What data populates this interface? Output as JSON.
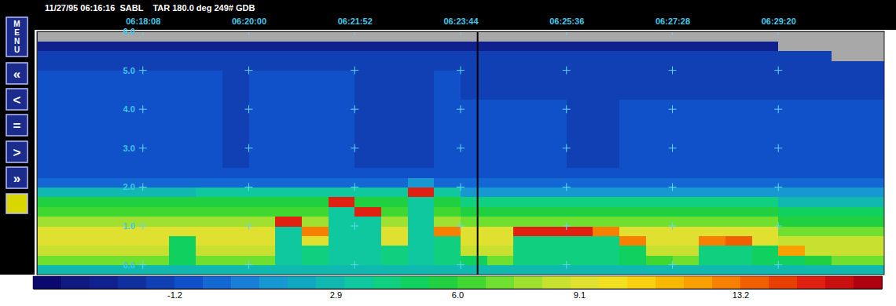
{
  "chart_data": {
    "type": "heatmap",
    "title": "11/27/95 06:16:16  SABL    TAR 180.0 deg 249# GDB",
    "xlim": [
      22576,
      23472
    ],
    "xticks": [
      {
        "value": 22688,
        "label": "06:18:08"
      },
      {
        "value": 22800,
        "label": "06:20:00"
      },
      {
        "value": 22912,
        "label": "06:21:52"
      },
      {
        "value": 23024,
        "label": "06:23:44"
      },
      {
        "value": 23136,
        "label": "06:25:36"
      },
      {
        "value": 23248,
        "label": "06:27:28"
      },
      {
        "value": 23360,
        "label": "06:29:20"
      }
    ],
    "ylim": [
      -0.25,
      6.0
    ],
    "yticks": [
      {
        "value": 0,
        "label": "0.0"
      },
      {
        "value": 1,
        "label": "1.0"
      },
      {
        "value": 2,
        "label": "2.0"
      },
      {
        "value": 3,
        "label": "3.0"
      },
      {
        "value": 4,
        "label": "4.0"
      },
      {
        "value": 5,
        "label": "5.0"
      },
      {
        "value": 6,
        "label": "6.0"
      }
    ],
    "grid": true,
    "vline": 23042,
    "x_bins": [
      22576,
      22604,
      22632,
      22660,
      22688,
      22716,
      22744,
      22772,
      22800,
      22828,
      22856,
      22884,
      22912,
      22940,
      22968,
      22996,
      23024,
      23052,
      23080,
      23108,
      23136,
      23164,
      23192,
      23220,
      23248,
      23276,
      23304,
      23332,
      23360,
      23388,
      23416,
      23444,
      23472
    ],
    "y_bins": [
      -0.25,
      0,
      0.25,
      0.5,
      0.75,
      1.0,
      1.25,
      1.5,
      1.75,
      2.0,
      2.25,
      2.5,
      2.75,
      3.0,
      3.25,
      3.5,
      3.75,
      4.0,
      4.25,
      4.5,
      4.75,
      5.0,
      5.25,
      5.5,
      5.75,
      6.0
    ],
    "values": [
      [
        3,
        3,
        3,
        3,
        3,
        3,
        3,
        3,
        3,
        3,
        3,
        3,
        3,
        3,
        3,
        3,
        3,
        3,
        3,
        3,
        3,
        3,
        3,
        3,
        3,
        3,
        3,
        3,
        3,
        3,
        3,
        3
      ],
      [
        7,
        7,
        7,
        7,
        7,
        5,
        7,
        7,
        7,
        3.5,
        4,
        3.5,
        3.5,
        4,
        3.2,
        4,
        5,
        7,
        4.5,
        4,
        4,
        4.5,
        5,
        6,
        7,
        4.5,
        4.5,
        5,
        5,
        5.5,
        7,
        7
      ],
      [
        8.5,
        8.5,
        8.5,
        8.5,
        8.5,
        5,
        8.5,
        8.5,
        8.5,
        3.5,
        4,
        3.5,
        3.5,
        4,
        3.2,
        4,
        8.5,
        8.5,
        4.5,
        4,
        4,
        4.5,
        5,
        8.5,
        8.5,
        4.5,
        4.5,
        5,
        12,
        8.5,
        8.5,
        8.5
      ],
      [
        9,
        9,
        9,
        9,
        9,
        5,
        9,
        9,
        9,
        3.5,
        9,
        3.5,
        3.5,
        9,
        3.2,
        4,
        9,
        9,
        4.5,
        4,
        4,
        4.5,
        13,
        9,
        9,
        13,
        13.5,
        9,
        8.5,
        8.5,
        8.5,
        8.5
      ],
      [
        9.5,
        9.5,
        9.5,
        9.5,
        9.5,
        9,
        9,
        9,
        9,
        3.5,
        13,
        3.5,
        3.5,
        9,
        3.2,
        13,
        9,
        9,
        15,
        15,
        15,
        13,
        9,
        9,
        9,
        9,
        9,
        9,
        7,
        7,
        7,
        7
      ],
      [
        8,
        8,
        8,
        8,
        8,
        8,
        8,
        8,
        8,
        15,
        8,
        3.5,
        3.5,
        8,
        3.2,
        8,
        7,
        7,
        7,
        7,
        7,
        7,
        7,
        7,
        7,
        7,
        7,
        7,
        5.5,
        5.5,
        5.5,
        5.5
      ],
      [
        6,
        6,
        6,
        6,
        6,
        6,
        6,
        6,
        6,
        6,
        6,
        3.5,
        15,
        6,
        3.2,
        6,
        5.5,
        5.5,
        5.5,
        5.5,
        5.5,
        5.5,
        5.5,
        5.5,
        5.5,
        5.5,
        5.5,
        5.5,
        5,
        5,
        5,
        5
      ],
      [
        5.5,
        5.5,
        5.5,
        5.5,
        5.5,
        5.5,
        5.5,
        5.5,
        5.5,
        5.5,
        5.5,
        15,
        5.5,
        5.5,
        3.2,
        5.5,
        4,
        4,
        4,
        4,
        4,
        4,
        4,
        4,
        4,
        4,
        4,
        4,
        3,
        3,
        3,
        3
      ],
      [
        2.5,
        2.5,
        2.5,
        2.5,
        2.5,
        2.5,
        3.5,
        3.5,
        3.5,
        3.5,
        3.5,
        3.5,
        3.5,
        3.5,
        15,
        3.5,
        1.5,
        1.5,
        1.5,
        1.5,
        1.5,
        1.5,
        1.5,
        1.5,
        1.5,
        1.5,
        1.5,
        1.5,
        1,
        1,
        1,
        1
      ],
      [
        0,
        0,
        0,
        0,
        0,
        0,
        0,
        0,
        0,
        0,
        0,
        0,
        0,
        0,
        1,
        0,
        0,
        0,
        0,
        0,
        0,
        0,
        0,
        0,
        0,
        0,
        0,
        0,
        0,
        0,
        0,
        0
      ],
      [
        -0.6,
        -0.6,
        -0.6,
        -0.6,
        -0.6,
        -0.6,
        -0.6,
        -0.6,
        -0.6,
        -0.6,
        -0.6,
        -0.6,
        -0.6,
        -0.6,
        -0.6,
        -0.6,
        -0.6,
        -0.6,
        -0.6,
        -0.6,
        -0.6,
        -0.6,
        -0.6,
        -0.6,
        -0.6,
        -0.6,
        -0.6,
        -0.6,
        -0.6,
        -0.6,
        -0.6,
        -0.6
      ],
      [
        -0.9,
        -0.9,
        -0.9,
        -0.9,
        -0.9,
        -0.9,
        -0.9,
        -1.5,
        -0.9,
        -0.9,
        -0.9,
        -0.9,
        -1.6,
        -1.5,
        -1.7,
        -0.9,
        -0.9,
        -0.9,
        -0.9,
        -0.9,
        -1.3,
        -1.3,
        -0.9,
        -0.9,
        -0.9,
        -0.9,
        -0.9,
        -0.9,
        -0.9,
        -0.9,
        -0.9,
        -0.9
      ],
      [
        -0.9,
        -0.9,
        -0.9,
        -0.9,
        -0.9,
        -0.9,
        -0.9,
        -1.5,
        -0.9,
        -0.9,
        -0.9,
        -0.9,
        -1.6,
        -1.5,
        -1.7,
        -0.9,
        -0.9,
        -0.9,
        -0.9,
        -0.9,
        -1.3,
        -1.3,
        -0.9,
        -0.9,
        -0.9,
        -0.9,
        -0.9,
        -0.9,
        -0.9,
        -0.9,
        -0.9,
        -0.9
      ],
      [
        -0.9,
        -0.9,
        -0.9,
        -0.9,
        -0.9,
        -0.9,
        -0.9,
        -1.5,
        -0.9,
        -0.9,
        -0.9,
        -0.9,
        -1.6,
        -1.5,
        -1.7,
        -0.9,
        -0.9,
        -0.9,
        -0.9,
        -0.9,
        -1.3,
        -1.3,
        -0.9,
        -0.9,
        -0.9,
        -0.9,
        -0.9,
        -0.9,
        -0.9,
        -0.9,
        -0.9,
        -0.9
      ],
      [
        -0.9,
        -0.9,
        -0.9,
        -0.9,
        -0.9,
        -0.9,
        -0.9,
        -1.5,
        -0.9,
        -0.9,
        -0.9,
        -0.9,
        -1.6,
        -1.5,
        -1.7,
        -0.9,
        -0.9,
        -0.9,
        -0.9,
        -0.9,
        -1.3,
        -1.3,
        -0.9,
        -0.9,
        -0.9,
        -0.9,
        -0.9,
        -0.9,
        -0.9,
        -0.9,
        -0.9,
        -0.9
      ],
      [
        -0.9,
        -0.9,
        -0.9,
        -0.9,
        -0.9,
        -0.9,
        -0.9,
        -1.5,
        -0.9,
        -0.9,
        -0.9,
        -0.9,
        -1.6,
        -1.5,
        -1.7,
        -0.9,
        -0.9,
        -0.9,
        -0.9,
        -0.9,
        -1.3,
        -1.3,
        -0.9,
        -0.9,
        -0.9,
        -0.9,
        -0.9,
        -0.9,
        -0.9,
        -0.9,
        -0.9,
        -0.9
      ],
      [
        -0.9,
        -0.9,
        -0.9,
        -0.9,
        -0.9,
        -0.9,
        -0.9,
        -1.5,
        -0.9,
        -0.9,
        -0.9,
        -0.9,
        -1.6,
        -1.5,
        -1.7,
        -0.9,
        -0.9,
        -0.9,
        -0.9,
        -0.9,
        -1.3,
        -1.3,
        -0.9,
        -0.9,
        -0.9,
        -0.9,
        -0.9,
        -0.9,
        -0.9,
        -0.9,
        -0.9,
        -0.9
      ],
      [
        -0.9,
        -0.9,
        -0.9,
        -0.9,
        -0.9,
        -0.9,
        -0.9,
        -1.5,
        -0.9,
        -0.9,
        -0.9,
        -0.9,
        -1.6,
        -1.5,
        -1.7,
        -0.9,
        -0.9,
        -0.9,
        -0.9,
        -0.9,
        -1.3,
        -1.3,
        -0.9,
        -0.9,
        -0.9,
        -0.9,
        -0.9,
        -0.9,
        -0.9,
        -0.9,
        -0.9,
        -0.9
      ],
      [
        -1.1,
        -1.1,
        -1.1,
        -1.1,
        -1.1,
        -1.1,
        -1.1,
        -1.5,
        -1.1,
        -1.1,
        -1.1,
        -1.1,
        -1.6,
        -1.5,
        -1.7,
        -1.1,
        -1.3,
        -1.3,
        -1.3,
        -1.3,
        -1.3,
        -1.3,
        -1.3,
        -1.3,
        -1.3,
        -1.3,
        -1.3,
        -1.3,
        -1.3,
        -1.3,
        -1.3,
        -1.3
      ],
      [
        -1.1,
        -1.1,
        -1.1,
        -1.1,
        -1.1,
        -1.1,
        -1.1,
        -1.5,
        -1.1,
        -1.1,
        -1.1,
        -1.1,
        -1.6,
        -1.5,
        -1.7,
        -1.1,
        -1.3,
        -1.3,
        -1.3,
        -1.3,
        -1.3,
        -1.3,
        -1.3,
        -1.3,
        -1.3,
        -1.3,
        -1.3,
        -1.3,
        -1.3,
        -1.3,
        -1.3,
        -1.3
      ],
      [
        -1.1,
        -1.1,
        -1.1,
        -1.1,
        -1.1,
        -1.1,
        -1.1,
        -1.5,
        -1.1,
        -1.1,
        -1.1,
        -1.1,
        -1.6,
        -1.5,
        -1.7,
        -1.1,
        -1.3,
        -1.3,
        -1.3,
        -1.3,
        -1.3,
        -1.3,
        -1.3,
        -1.3,
        -1.3,
        -1.3,
        -1.3,
        -1.3,
        -1.3,
        -1.3,
        -1.3,
        -1.3
      ],
      [
        -1.5,
        -1.5,
        -1.5,
        -1.5,
        -1.5,
        -1.5,
        -1.5,
        -1.5,
        -1.5,
        -1.5,
        -1.5,
        -1.5,
        -1.5,
        -1.5,
        -1.5,
        -1.5,
        -1.5,
        -1.5,
        -1.5,
        -1.5,
        -1.5,
        -1.5,
        -1.5,
        -1.5,
        -1.5,
        -1.5,
        -1.5,
        -1.5,
        -1.5,
        -1.5,
        -1.5,
        -1.5
      ],
      [
        -1.5,
        -1.5,
        -1.5,
        -1.5,
        -1.5,
        -1.5,
        -1.5,
        -1.5,
        -1.5,
        -1.5,
        -1.5,
        -1.5,
        -1.5,
        -1.5,
        -1.5,
        -1.5,
        -1.5,
        -1.5,
        -1.5,
        -1.5,
        -1.5,
        -1.5,
        -1.5,
        -1.5,
        -1.5,
        -1.5,
        -1.5,
        -1.5,
        -1.5,
        -1.5,
        null,
        null
      ],
      [
        -2.8,
        -2.8,
        -2.8,
        -2.8,
        -2.8,
        -2.8,
        -2.8,
        -2.8,
        -2.8,
        -2.8,
        -2.8,
        -2.8,
        -2.8,
        -2.8,
        -2.8,
        -2.8,
        -2.8,
        -2.8,
        -2.8,
        -2.8,
        -2.8,
        -2.8,
        -2.8,
        -2.8,
        -2.8,
        -2.8,
        -2.8,
        -2.8,
        null,
        null,
        null,
        null
      ],
      [
        null,
        null,
        null,
        null,
        null,
        null,
        null,
        null,
        null,
        null,
        null,
        null,
        null,
        null,
        null,
        null,
        null,
        null,
        null,
        null,
        null,
        null,
        null,
        null,
        null,
        null,
        null,
        null,
        null,
        null,
        null,
        null
      ]
    ],
    "colorbar": {
      "range": [
        -4.8,
        16.8
      ],
      "ticks": [
        -1.2,
        2.9,
        {
          "value": 6,
          "label": "6.0"
        },
        9.1,
        13.2
      ]
    }
  },
  "menu": {
    "buttons": [
      "MENU",
      "«",
      "<",
      "=",
      ">",
      "»"
    ]
  }
}
